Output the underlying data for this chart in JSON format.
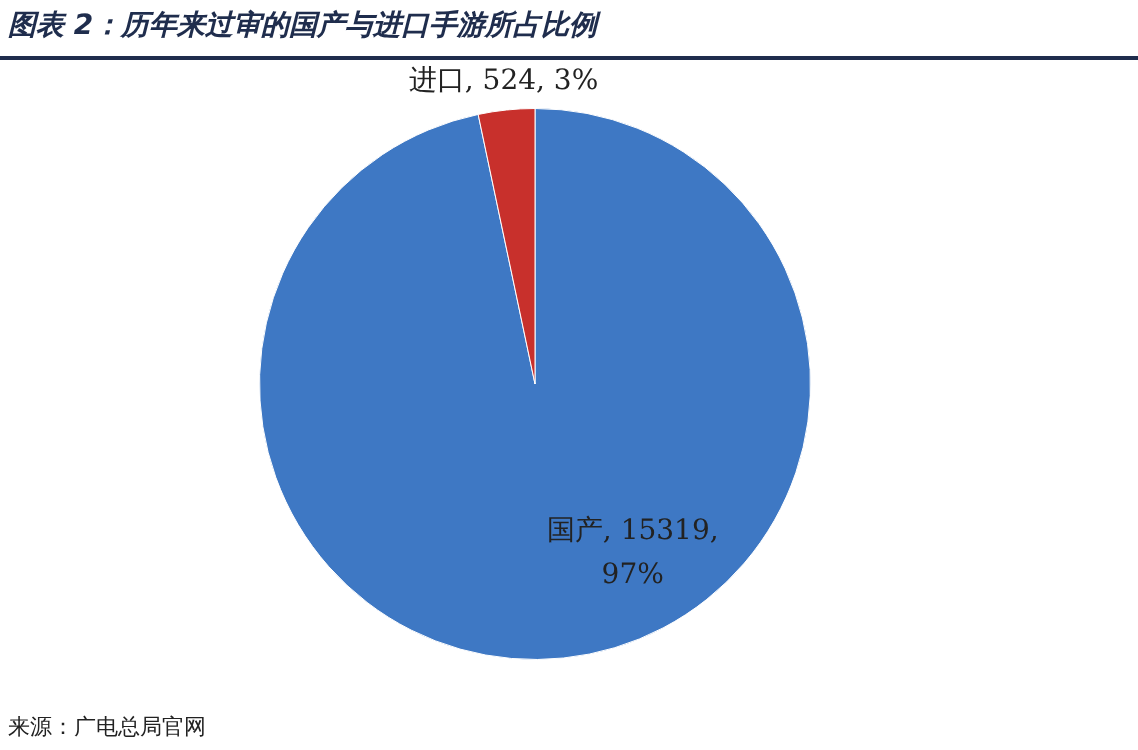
{
  "chart_data": {
    "type": "pie",
    "title": "图表 2：历年来过审的国产与进口手游所占比例",
    "categories": [
      "国产",
      "进口"
    ],
    "values": [
      15319,
      524
    ],
    "colors": [
      "#3e78c4",
      "#c8302c"
    ],
    "value_labels": [
      "15319, 97%",
      "524, 3%"
    ],
    "legend": false,
    "annotations": [
      "来源：广电总局官网"
    ]
  }
}
